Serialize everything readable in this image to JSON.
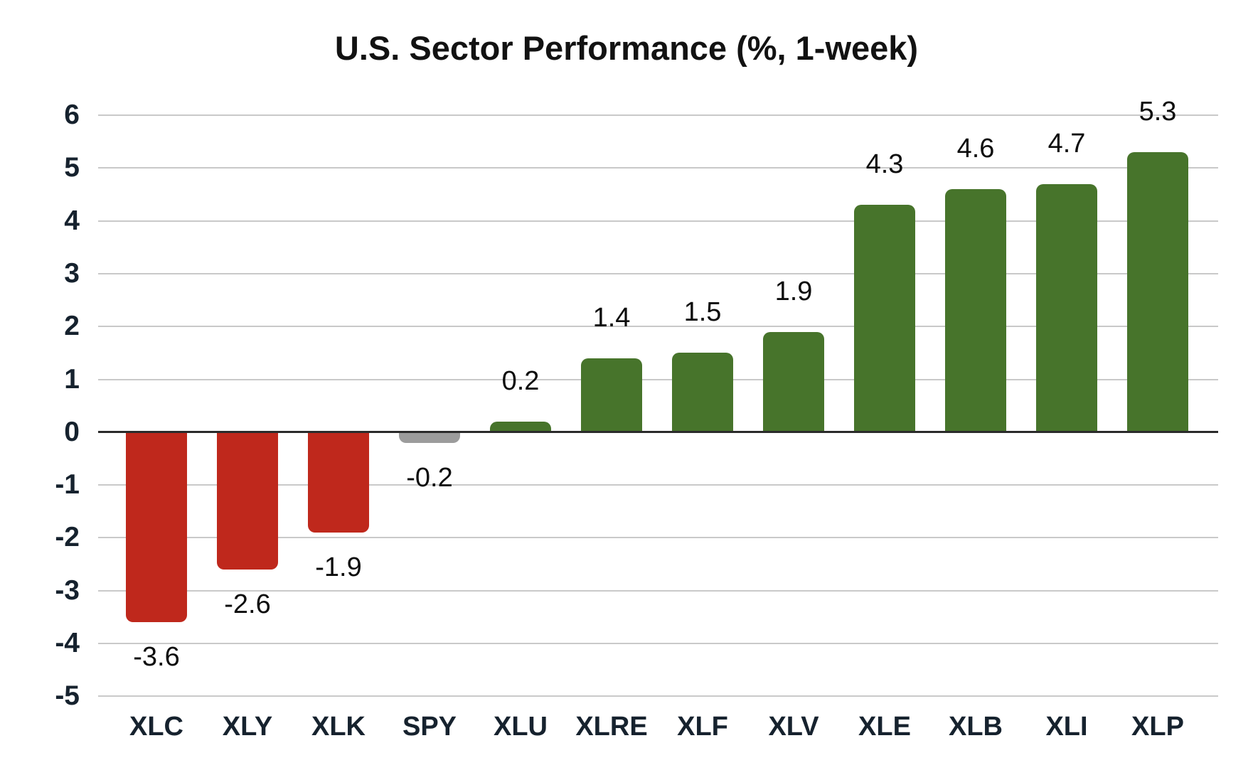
{
  "chart_data": {
    "type": "bar",
    "title": "U.S. Sector Performance (%, 1-week)",
    "categories": [
      "XLC",
      "XLY",
      "XLK",
      "SPY",
      "XLU",
      "XLRE",
      "XLF",
      "XLV",
      "XLE",
      "XLB",
      "XLI",
      "XLP"
    ],
    "values": [
      -3.6,
      -2.6,
      -1.9,
      -0.2,
      0.2,
      1.4,
      1.5,
      1.9,
      4.3,
      4.6,
      4.7,
      5.3
    ],
    "value_labels": [
      "-3.6",
      "-2.6",
      "-1.9",
      "-0.2",
      "0.2",
      "1.4",
      "1.5",
      "1.9",
      "4.3",
      "4.6",
      "4.7",
      "5.3"
    ],
    "bar_colors": [
      "#bf281c",
      "#bf281c",
      "#bf281c",
      "#9c9c9c",
      "#47742b",
      "#47742b",
      "#47742b",
      "#47742b",
      "#47742b",
      "#47742b",
      "#47742b",
      "#47742b"
    ],
    "xlabel": "",
    "ylabel": "",
    "ylim": [
      -5,
      6
    ],
    "yticks": [
      6,
      5,
      4,
      3,
      2,
      1,
      0,
      -1,
      -2,
      -3,
      -4,
      -5
    ],
    "grid": "horizontal",
    "legend": "none",
    "value_label_position": "outside-end",
    "colors": {
      "negative_bar": "#bf281c",
      "positive_bar": "#47742b",
      "benchmark_bar": "#9c9c9c",
      "gridline": "#c9c9c9",
      "zero_line": "#2b2b2b",
      "axis_label": "#16222e",
      "value_label": "#0c0c0c",
      "title": "#121212",
      "background": "#ffffff"
    }
  }
}
